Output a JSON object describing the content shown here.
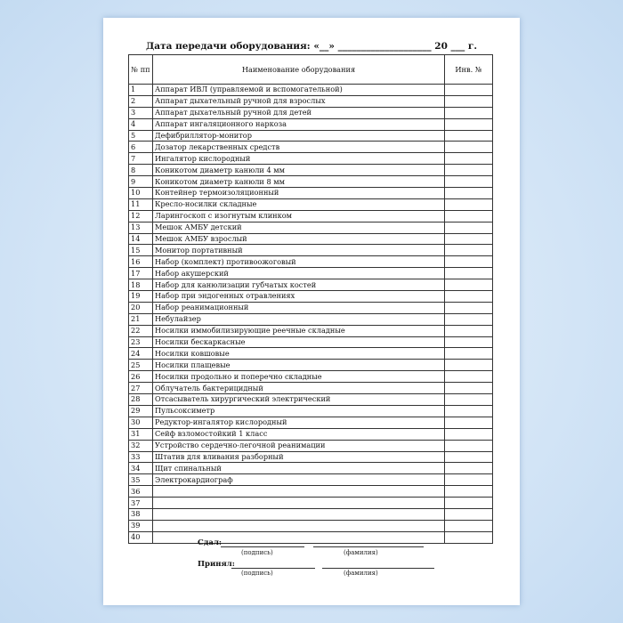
{
  "title": "Дата передачи оборудования: «__» ____________________ 20 ___ г.",
  "table": {
    "headers": [
      "№ пп",
      "Наименование оборудования",
      "Инв. №"
    ],
    "rows": [
      [
        "1",
        "Аппарат ИВЛ (управляемой и вспомогательной)",
        ""
      ],
      [
        "2",
        "Аппарат дыхательный ручной для взрослых",
        ""
      ],
      [
        "3",
        "Аппарат дыхательный ручной для детей",
        ""
      ],
      [
        "4",
        "Аппарат ингаляционного наркоза",
        ""
      ],
      [
        "5",
        "Дефибриллятор-монитор",
        ""
      ],
      [
        "6",
        "Дозатор лекарственных средств",
        ""
      ],
      [
        "7",
        "Ингалятор кислородный",
        ""
      ],
      [
        "8",
        "Коникотом диаметр канюли 4 мм",
        ""
      ],
      [
        "9",
        "Коникотом диаметр канюли 8 мм",
        ""
      ],
      [
        "10",
        "Контейнер термоизоляционный",
        ""
      ],
      [
        "11",
        "Кресло-носилки складные",
        ""
      ],
      [
        "12",
        "Ларингоскоп с изогнутым клинком",
        ""
      ],
      [
        "13",
        "Мешок АМБУ детский",
        ""
      ],
      [
        "14",
        "Мешок АМБУ взрослый",
        ""
      ],
      [
        "15",
        "Монитор портативный",
        ""
      ],
      [
        "16",
        "Набор (комплект) противоожоговый",
        ""
      ],
      [
        "17",
        "Набор акушерский",
        ""
      ],
      [
        "18",
        "Набор для канюлизации губчатых костей",
        ""
      ],
      [
        "19",
        "Набор при эндогенных отравлениях",
        ""
      ],
      [
        "20",
        "Набор реанимационный",
        ""
      ],
      [
        "21",
        "Небулайзер",
        ""
      ],
      [
        "22",
        "Носилки иммобилизирующие реечные складные",
        ""
      ],
      [
        "23",
        "Носилки бескаркасные",
        ""
      ],
      [
        "24",
        "Носилки ковшовые",
        ""
      ],
      [
        "25",
        "Носилки плащевые",
        ""
      ],
      [
        "26",
        "Носилки продольно и поперечно складные",
        ""
      ],
      [
        "27",
        "Облучатель бактерицидный",
        ""
      ],
      [
        "28",
        "Отсасыватель хирургический электрический",
        ""
      ],
      [
        "29",
        "Пульсоксиметр",
        ""
      ],
      [
        "30",
        "Редуктор-ингалятор кислородный",
        ""
      ],
      [
        "31",
        "Сейф взломостойкий 1 класс",
        ""
      ],
      [
        "32",
        "Устройство сердечно-легочной реанимации",
        ""
      ],
      [
        "33",
        "Штатив для вливания разборный",
        ""
      ],
      [
        "34",
        "Щит спинальный",
        ""
      ],
      [
        "35",
        "Электрокардиограф",
        ""
      ],
      [
        "36",
        "",
        ""
      ],
      [
        "37",
        "",
        ""
      ],
      [
        "38",
        "",
        ""
      ],
      [
        "39",
        "",
        ""
      ],
      [
        "40",
        "",
        ""
      ]
    ]
  },
  "signatures": {
    "handed_label": "Сдал:",
    "received_label": "Принял:",
    "signature_caption": "(подпись)",
    "surname_caption": "(фамилия)"
  }
}
